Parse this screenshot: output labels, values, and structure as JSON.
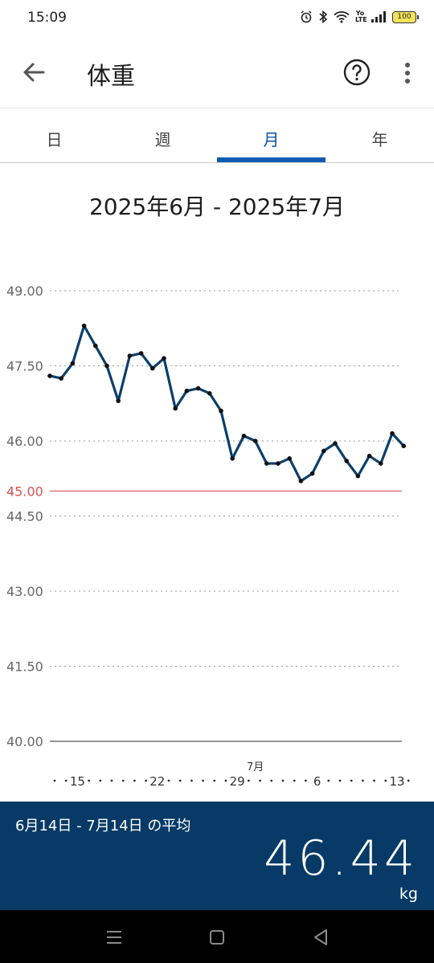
{
  "status_bar": {
    "time": "15:09",
    "battery": "100",
    "network": "Yo LTE"
  },
  "app_bar": {
    "title": "体重",
    "back_icon": "arrow-left-icon",
    "help_icon": "question-circle-icon",
    "more_icon": "more-vert-icon"
  },
  "tabs": [
    {
      "label": "日",
      "active": false
    },
    {
      "label": "週",
      "active": false
    },
    {
      "label": "月",
      "active": true
    },
    {
      "label": "年",
      "active": false
    }
  ],
  "range_title": "2025年6月 - 2025年7月",
  "chart_data": {
    "type": "line",
    "title": "",
    "xlabel": "",
    "ylabel": "",
    "ylim": [
      40.0,
      49.0
    ],
    "y_ticks": [
      "49.00",
      "47.50",
      "46.00",
      "45.00",
      "44.50",
      "43.00",
      "41.50",
      "40.00"
    ],
    "target_line": {
      "value": 45.0,
      "label": "45.00",
      "color": "#d9534f"
    },
    "x_tick_labels": [
      {
        "day": 2,
        "label": "15"
      },
      {
        "day": 9,
        "label": "22"
      },
      {
        "day": 16,
        "label": "29"
      },
      {
        "day": 23,
        "label": "6"
      },
      {
        "day": 30,
        "label": "13"
      }
    ],
    "month_label": {
      "day": 18,
      "label": "7月"
    },
    "x_days": 32,
    "series": [
      {
        "color": "#0b3f6b",
        "values": [
          47.3,
          47.25,
          47.55,
          48.3,
          47.9,
          47.5,
          46.8,
          47.7,
          47.75,
          47.45,
          47.65,
          46.65,
          47.0,
          47.05,
          46.95,
          46.6,
          45.65,
          46.1,
          46.0,
          45.55,
          45.55,
          45.65,
          45.2,
          45.35,
          45.8,
          45.95,
          45.6,
          45.3,
          45.7,
          45.55,
          46.15,
          45.9
        ]
      }
    ],
    "grid": true
  },
  "summary": {
    "label": "6月14日 - 7月14日 の平均",
    "value": "46.44",
    "unit": "kg"
  },
  "nav_bar": {
    "menu_icon": "menu-icon",
    "home_icon": "home-icon",
    "back_icon": "back-triangle-icon"
  },
  "colors": {
    "accent": "#0a5cb0",
    "summary_bg": "#073a66",
    "line": "#0b3f6b",
    "target": "#d9534f"
  }
}
